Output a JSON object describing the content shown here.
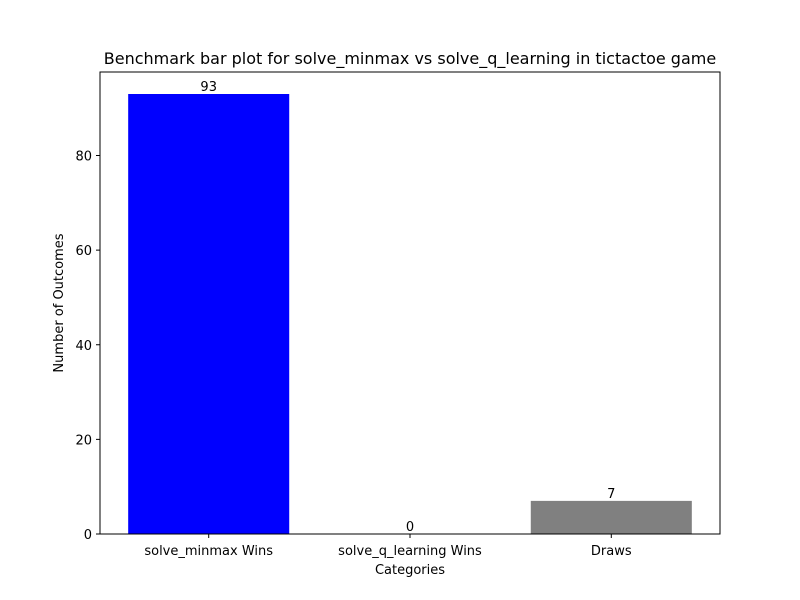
{
  "chart_data": {
    "type": "bar",
    "title": "Benchmark bar plot for solve_minmax vs solve_q_learning in tictactoe game",
    "xlabel": "Categories",
    "ylabel": "Number of Outcomes",
    "categories": [
      "solve_minmax Wins",
      "solve_q_learning Wins",
      "Draws"
    ],
    "values": [
      93,
      0,
      7
    ],
    "bar_colors": [
      "#0000ff",
      "#0000ff",
      "#808080"
    ],
    "data_labels": [
      "93",
      "0",
      "7"
    ],
    "ylim": [
      0,
      97.65
    ],
    "yticks": [
      0,
      20,
      40,
      60,
      80
    ],
    "grid": false,
    "legend": "none"
  }
}
